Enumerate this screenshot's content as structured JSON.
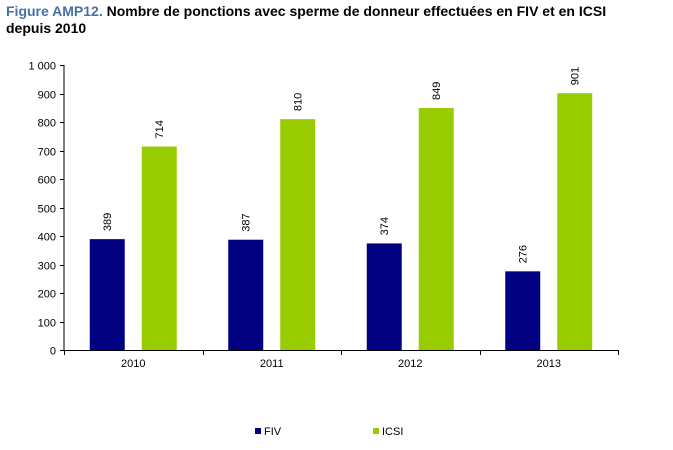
{
  "title": {
    "prefix": "Figure AMP12.",
    "text": "Nombre de ponctions avec sperme de donneur effectuées en FIV et en ICSI depuis 2010"
  },
  "chart_data": {
    "type": "bar",
    "title": "Figure AMP12. Nombre de ponctions avec sperme de donneur effectuées en FIV et en ICSI depuis 2010",
    "categories": [
      "2010",
      "2011",
      "2012",
      "2013"
    ],
    "series": [
      {
        "name": "FIV",
        "values": [
          389,
          387,
          374,
          276
        ],
        "color": "#000080"
      },
      {
        "name": "ICSI",
        "values": [
          714,
          810,
          849,
          901
        ],
        "color": "#99cc00"
      }
    ],
    "data_labels": {
      "FIV": [
        "389",
        "387",
        "374",
        "276"
      ],
      "ICSI": [
        "714",
        "810",
        "849",
        "901"
      ]
    },
    "yticks": [
      {
        "value": 0,
        "label": "0"
      },
      {
        "value": 100,
        "label": "100"
      },
      {
        "value": 200,
        "label": "200"
      },
      {
        "value": 300,
        "label": "300"
      },
      {
        "value": 400,
        "label": "400"
      },
      {
        "value": 500,
        "label": "500"
      },
      {
        "value": 600,
        "label": "600"
      },
      {
        "value": 700,
        "label": "700"
      },
      {
        "value": 800,
        "label": "800"
      },
      {
        "value": 900,
        "label": "900"
      },
      {
        "value": 1000,
        "label": "1 000"
      }
    ],
    "ylim": [
      0,
      1000
    ],
    "xlabel": "",
    "ylabel": "",
    "grid": false,
    "legend": "bottom"
  }
}
